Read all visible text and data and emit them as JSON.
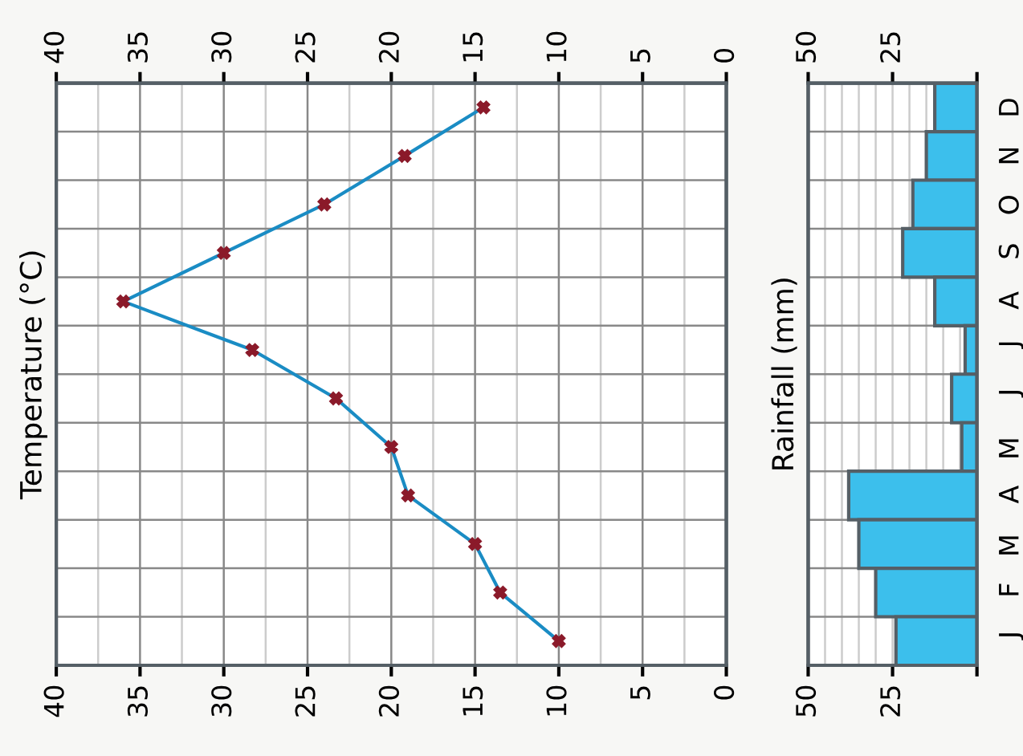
{
  "chart_data": [
    {
      "type": "line",
      "orientation": "horizontal",
      "ylabel": "Temperature (°C)",
      "categories": [
        null,
        null,
        null,
        null,
        null,
        null,
        null,
        null,
        null,
        null,
        null,
        null
      ],
      "series": [
        {
          "color": "#1a8cc4",
          "values": [
            14.5,
            19.2,
            24,
            30,
            36,
            28.3,
            23.3,
            20,
            19,
            15,
            13.5,
            10
          ]
        }
      ],
      "marker": "cross",
      "line_style": "solid",
      "xlim": [
        40,
        0
      ],
      "xticks": [
        40,
        35,
        30,
        25,
        20,
        15,
        10,
        5,
        0
      ],
      "x2lim": [
        40,
        0
      ],
      "x2ticks": [
        40,
        35,
        30,
        25,
        20,
        15,
        10,
        5,
        0
      ],
      "grid": true
    },
    {
      "type": "bar",
      "orientation": "horizontal",
      "ylabel": "Rainfall (mm)",
      "categories": [
        "D",
        "N",
        "O",
        "S",
        "A",
        "J",
        "J",
        "M",
        "A",
        "M",
        "F",
        "J"
      ],
      "series": [
        {
          "color": "#3cbfec",
          "values": [
            12.5,
            15,
            19,
            22,
            12.5,
            3.5,
            7.5,
            4.5,
            38,
            35,
            30,
            24
          ]
        }
      ],
      "xlim": [
        50,
        0
      ],
      "xticks": [
        50,
        25,
        {
          "value": 0,
          "label": null
        }
      ],
      "x2lim": [
        50,
        0
      ],
      "x2ticks": [
        50,
        25,
        {
          "value": 0,
          "label": null
        }
      ],
      "grid": true
    }
  ]
}
